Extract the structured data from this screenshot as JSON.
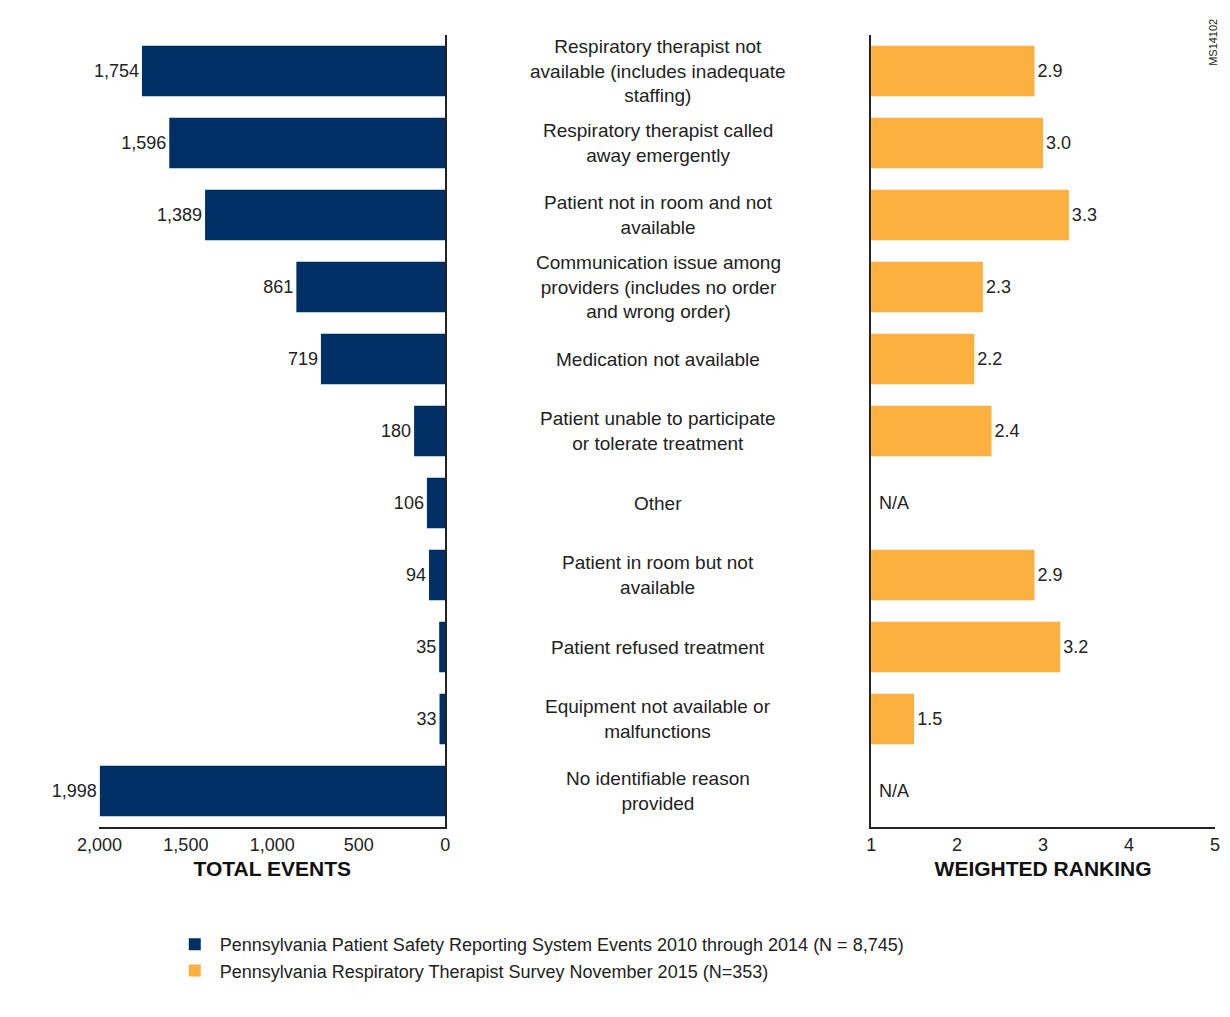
{
  "chart_data": [
    {
      "type": "bar",
      "orientation": "horizontal",
      "categories": [
        "Respiratory therapist not available (includes inadequate staffing)",
        "Respiratory therapist called away emergently",
        "Patient not in room and not available",
        "Communication issue among providers (includes no order and wrong order)",
        "Medication not available",
        "Patient unable to participate or tolerate treatment",
        "Other",
        "Patient in room but not available",
        "Patient refused treatment",
        "Equipment not available or malfunctions",
        "No identifiable reason provided"
      ],
      "series": [
        {
          "name": "Pennsylvania Patient Safety Reporting System Events 2010 through 2014 (N = 8,745)",
          "color": "#002f65",
          "values": [
            1754,
            1596,
            1389,
            861,
            719,
            180,
            106,
            94,
            35,
            33,
            1998
          ],
          "value_labels": [
            "1,754",
            "1,596",
            "1,389",
            "861",
            "719",
            "180",
            "106",
            "94",
            "35",
            "33",
            "1,998"
          ]
        }
      ],
      "x_label": "TOTAL EVENTS",
      "xlim": [
        2000,
        0
      ],
      "xticks": [
        {
          "value": 2000,
          "label": "2,000"
        },
        {
          "value": 1500,
          "label": "1,500"
        },
        {
          "value": 1000,
          "label": "1,000"
        },
        500,
        0
      ],
      "grid": false,
      "data_labels": true,
      "legend": "bottom"
    },
    {
      "type": "bar",
      "orientation": "horizontal",
      "categories": [
        "Respiratory therapist not available (includes inadequate staffing)",
        "Respiratory therapist called away emergently",
        "Patient not in room and not available",
        "Communication issue among providers (includes no order and wrong order)",
        "Medication not available",
        "Patient unable to participate or tolerate treatment",
        "Other",
        "Patient in room but not available",
        "Patient refused treatment",
        "Equipment not available or malfunctions",
        "No identifiable reason provided"
      ],
      "series": [
        {
          "name": "Pennsylvania Respiratory Therapist Survey November 2015 (N=353)",
          "color": "#fbb040",
          "values": [
            2.9,
            3.0,
            3.3,
            2.3,
            2.2,
            2.4,
            null,
            2.9,
            3.2,
            1.5,
            null
          ],
          "value_labels": [
            "2.9",
            "3.0",
            "3.3",
            "2.3",
            "2.2",
            "2.4",
            "N/A",
            "2.9",
            "3.2",
            "1.5",
            "N/A"
          ]
        }
      ],
      "x_label": "WEIGHTED RANKING",
      "xlim": [
        1,
        5
      ],
      "xticks": [
        1,
        2,
        3,
        4,
        5
      ],
      "grid": false,
      "data_labels": true,
      "legend": "bottom",
      "annotations": [
        "MS14102"
      ]
    }
  ]
}
